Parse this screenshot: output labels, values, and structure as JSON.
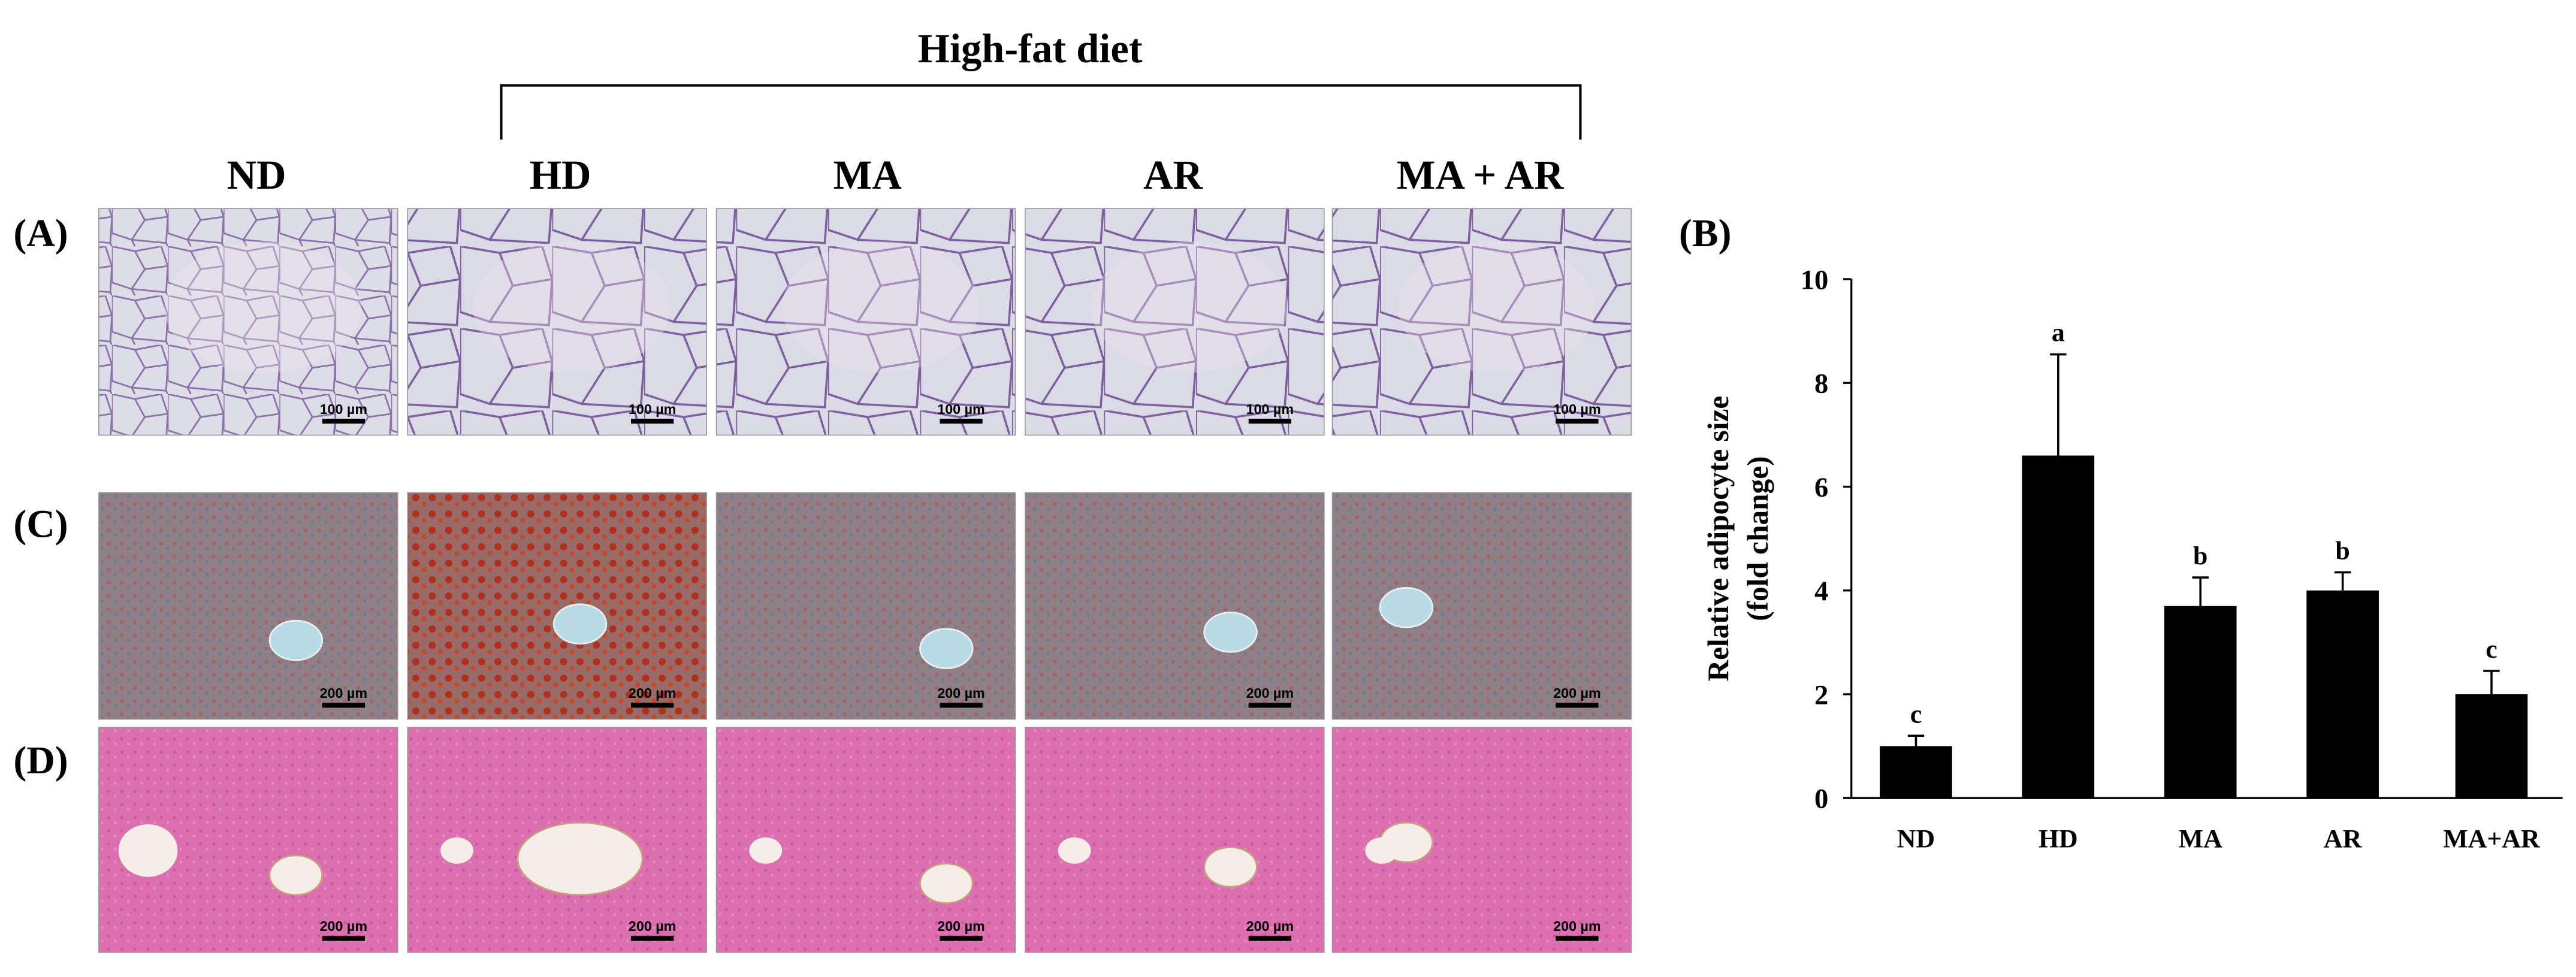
{
  "figure": {
    "group_label": "High-fat diet",
    "columns": [
      "ND",
      "HD",
      "MA",
      "AR",
      "MA + AR"
    ],
    "rows": [
      {
        "label": "(A)",
        "scale_bar": "100 µm"
      },
      {
        "label": "(C)",
        "scale_bar": "200 µm"
      },
      {
        "label": "(D)",
        "scale_bar": "200 µm"
      }
    ]
  },
  "chart_data": {
    "type": "bar",
    "panel_label": "(B)",
    "ylabel": [
      "Relative adipocyte size",
      "(fold change)"
    ],
    "categories": [
      "ND",
      "HD",
      "MA",
      "AR",
      "MA+AR"
    ],
    "values": [
      1.0,
      6.6,
      3.7,
      4.0,
      2.0
    ],
    "errors": [
      0.2,
      1.95,
      0.55,
      0.35,
      0.45
    ],
    "annotations": [
      "c",
      "a",
      "b",
      "b",
      "c"
    ],
    "color": "#000000",
    "ylim": [
      0,
      10
    ],
    "yticks": [
      0,
      2,
      4,
      6,
      8,
      10
    ],
    "grid": false
  }
}
